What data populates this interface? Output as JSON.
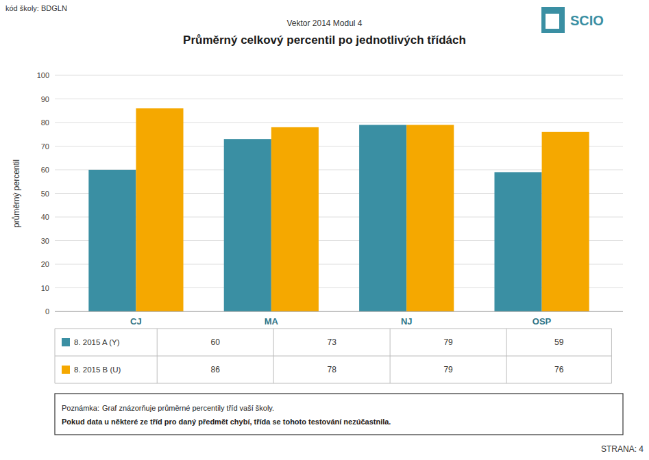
{
  "chart_data": {
    "type": "bar",
    "title": "Průměrný celkový percentil po jednotlivých třídách",
    "subtitle": "Vektor 2014 Modul 4",
    "y_label": "průměrný percentil",
    "categories": [
      "CJ",
      "MA",
      "NJ",
      "OSP"
    ],
    "series": [
      {
        "name": "8. 2015 A (Y)",
        "color": "#3a8fa3",
        "values": [
          60,
          73,
          79,
          59
        ]
      },
      {
        "name": "8. 2015 B (U)",
        "color": "#f5a800",
        "values": [
          86,
          78,
          79,
          76
        ]
      }
    ],
    "ylim": [
      0,
      100
    ],
    "yticks": [
      0,
      10,
      20,
      30,
      40,
      50,
      60,
      70,
      80,
      90,
      100
    ],
    "grid": true,
    "annotations": [
      "kód školy: BDGLN",
      "STRANA: 4",
      "SCIO",
      "Poznámka:",
      "Graf znázorňuje průměrné percentily tříd vaší školy.",
      "Pokud data u některé ze tříd pro daný předmět chybí, třída se tohoto testování nezúčastnila."
    ]
  }
}
